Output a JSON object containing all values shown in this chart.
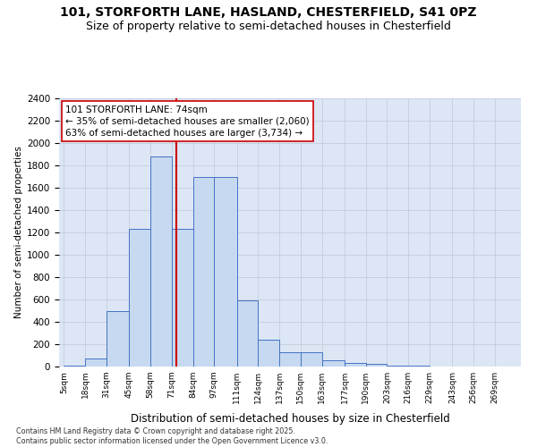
{
  "title": "101, STORFORTH LANE, HASLAND, CHESTERFIELD, S41 0PZ",
  "subtitle": "Size of property relative to semi-detached houses in Chesterfield",
  "xlabel": "Distribution of semi-detached houses by size in Chesterfield",
  "ylabel": "Number of semi-detached properties",
  "footnote": "Contains HM Land Registry data © Crown copyright and database right 2025.\nContains public sector information licensed under the Open Government Licence v3.0.",
  "bar_edges": [
    5,
    18,
    31,
    45,
    58,
    71,
    84,
    97,
    111,
    124,
    137,
    150,
    163,
    177,
    190,
    203,
    216,
    229,
    243,
    256,
    269,
    282
  ],
  "bar_labels": [
    "5sqm",
    "18sqm",
    "31sqm",
    "45sqm",
    "58sqm",
    "71sqm",
    "84sqm",
    "97sqm",
    "111sqm",
    "124sqm",
    "137sqm",
    "150sqm",
    "163sqm",
    "177sqm",
    "190sqm",
    "203sqm",
    "216sqm",
    "229sqm",
    "243sqm",
    "256sqm",
    "269sqm"
  ],
  "bar_heights": [
    8,
    75,
    500,
    1230,
    1880,
    1230,
    1700,
    1700,
    590,
    240,
    130,
    130,
    60,
    35,
    25,
    10,
    5,
    3,
    2,
    2,
    2
  ],
  "bar_color": "#c6d9f0",
  "bar_edge_color": "#4472c4",
  "property_size": 74,
  "red_line_color": "#cc0000",
  "annotation_text": "101 STORFORTH LANE: 74sqm\n← 35% of semi-detached houses are smaller (2,060)\n63% of semi-detached houses are larger (3,734) →",
  "annotation_box_color": "#cc0000",
  "ylim": [
    0,
    2400
  ],
  "yticks": [
    0,
    200,
    400,
    600,
    800,
    1000,
    1200,
    1400,
    1600,
    1800,
    2000,
    2200,
    2400
  ],
  "grid_color": "#c0c8d8",
  "bg_color": "#dce6f5",
  "title_fontsize": 10,
  "subtitle_fontsize": 9,
  "ann_fontsize": 7.5
}
